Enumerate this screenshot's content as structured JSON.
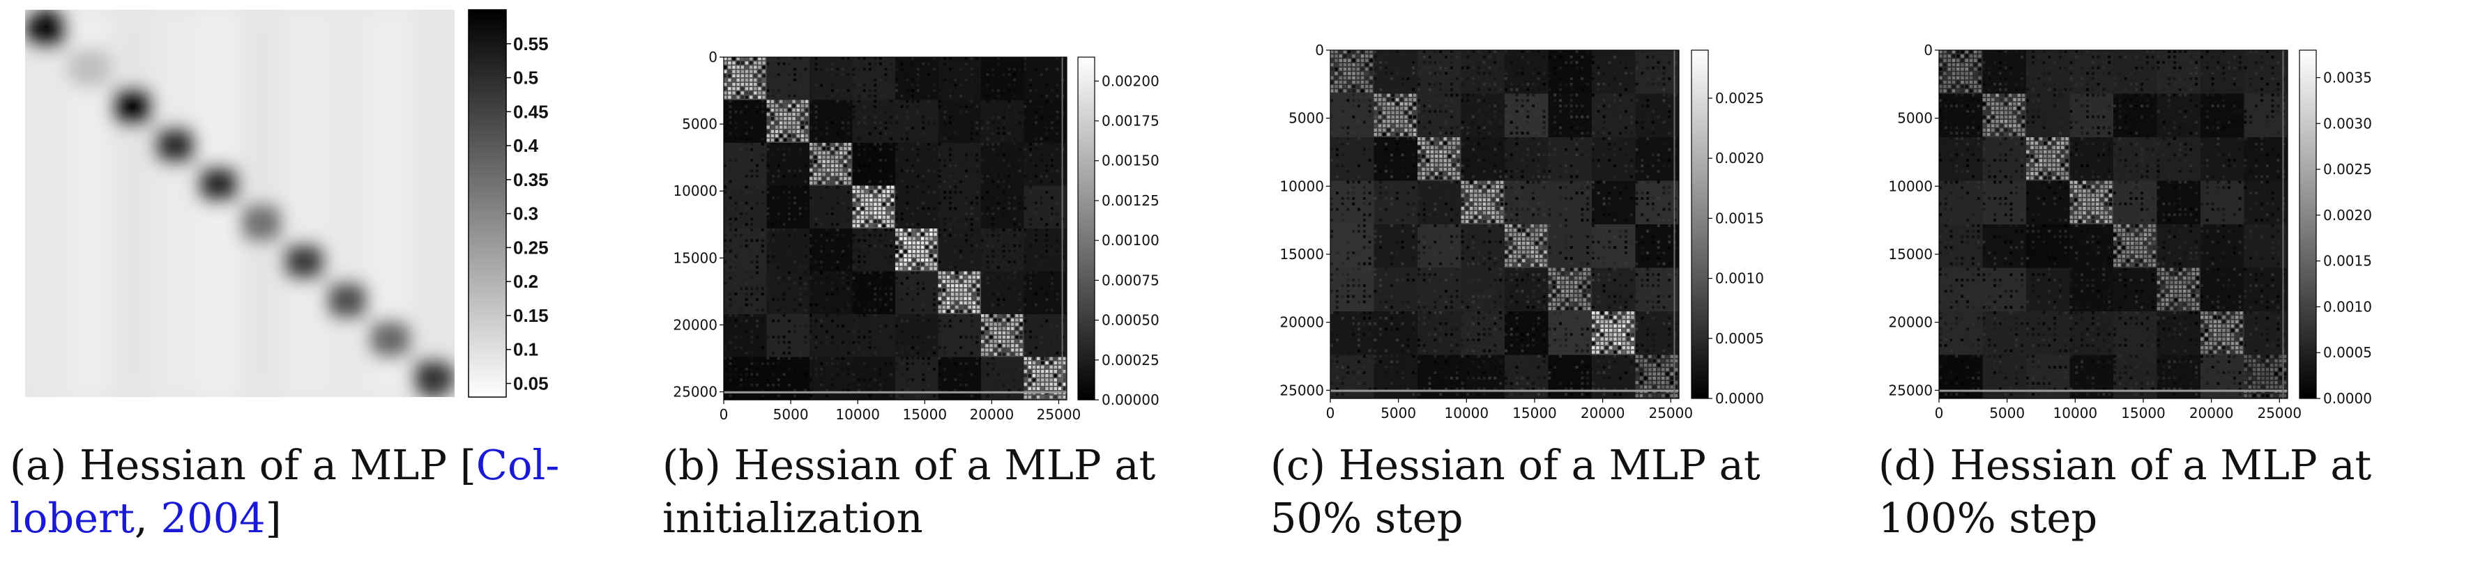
{
  "colors": {
    "dark": "#000000",
    "light": "#ffffff",
    "citation": "#1a1ad6"
  },
  "chart_data": [
    {
      "type": "heatmap",
      "colormap": "gray",
      "description_visible": "diagonal heatmap, no axis ticks",
      "colorbar": {
        "ticks": [
          "0.55",
          "0.5",
          "0.45",
          "0.4",
          "0.35",
          "0.3",
          "0.25",
          "0.2",
          "0.15",
          "0.1",
          "0.05"
        ],
        "tick_values": [
          0.55,
          0.5,
          0.45,
          0.4,
          0.35,
          0.3,
          0.25,
          0.2,
          0.15,
          0.1,
          0.05
        ],
        "range": [
          0.03,
          0.6
        ],
        "reversed": true
      },
      "caption": {
        "label": "(a) Hessian of a MLP [",
        "cite_author": "Col-",
        "line2_cite": "lobert",
        "line2_sep": ", ",
        "cite_year": "2004",
        "close": "]"
      }
    },
    {
      "type": "heatmap",
      "colormap": "gray",
      "x_ticks": [
        "0",
        "5000",
        "10000",
        "15000",
        "20000",
        "25000"
      ],
      "y_ticks": [
        "0",
        "5000",
        "10000",
        "15000",
        "20000",
        "25000"
      ],
      "xlim": [
        0,
        25600
      ],
      "ylim": [
        25600,
        0
      ],
      "block_ranges": [
        [
          0,
          3200
        ],
        [
          3200,
          6400
        ],
        [
          6400,
          9600
        ],
        [
          9600,
          12800
        ],
        [
          12800,
          16000
        ],
        [
          16000,
          19200
        ],
        [
          19200,
          22400
        ],
        [
          22400,
          25600
        ]
      ],
      "colorbar": {
        "ticks": [
          "0.00200",
          "0.00175",
          "0.00150",
          "0.00125",
          "0.00100",
          "0.00075",
          "0.00050",
          "0.00025",
          "0.00000"
        ],
        "tick_values": [
          0.002,
          0.00175,
          0.0015,
          0.00125,
          0.001,
          0.00075,
          0.0005,
          0.00025,
          0
        ],
        "range": [
          0,
          0.00215
        ]
      },
      "caption": {
        "line1": "(b) Hessian of a MLP at",
        "line2": "initialization"
      }
    },
    {
      "type": "heatmap",
      "colormap": "gray",
      "x_ticks": [
        "0",
        "5000",
        "10000",
        "15000",
        "20000",
        "25000"
      ],
      "y_ticks": [
        "0",
        "5000",
        "10000",
        "15000",
        "20000",
        "25000"
      ],
      "xlim": [
        0,
        25600
      ],
      "ylim": [
        25600,
        0
      ],
      "block_ranges": [
        [
          0,
          3200
        ],
        [
          3200,
          6400
        ],
        [
          6400,
          9600
        ],
        [
          9600,
          12800
        ],
        [
          12800,
          16000
        ],
        [
          16000,
          19200
        ],
        [
          19200,
          22400
        ],
        [
          22400,
          25600
        ]
      ],
      "colorbar": {
        "ticks": [
          "0.0025",
          "0.0020",
          "0.0015",
          "0.0010",
          "0.0005",
          "0.0000"
        ],
        "tick_values": [
          0.0025,
          0.002,
          0.0015,
          0.001,
          0.0005,
          0
        ],
        "range": [
          0,
          0.0029
        ]
      },
      "caption": {
        "line1": "(c) Hessian of a MLP at",
        "line2": "50% step"
      }
    },
    {
      "type": "heatmap",
      "colormap": "gray",
      "x_ticks": [
        "0",
        "5000",
        "10000",
        "15000",
        "20000",
        "25000"
      ],
      "y_ticks": [
        "0",
        "5000",
        "10000",
        "15000",
        "20000",
        "25000"
      ],
      "xlim": [
        0,
        25600
      ],
      "ylim": [
        25600,
        0
      ],
      "block_ranges": [
        [
          0,
          3200
        ],
        [
          3200,
          6400
        ],
        [
          6400,
          9600
        ],
        [
          9600,
          12800
        ],
        [
          12800,
          16000
        ],
        [
          16000,
          19200
        ],
        [
          19200,
          22400
        ],
        [
          22400,
          25600
        ]
      ],
      "colorbar": {
        "ticks": [
          "0.0035",
          "0.0030",
          "0.0025",
          "0.0020",
          "0.0015",
          "0.0010",
          "0.0005",
          "0.0000"
        ],
        "tick_values": [
          0.0035,
          0.003,
          0.0025,
          0.002,
          0.0015,
          0.001,
          0.0005,
          0
        ],
        "range": [
          0,
          0.0038
        ]
      },
      "caption": {
        "line1": "(d) Hessian of a MLP at",
        "line2": "100% step"
      }
    }
  ]
}
